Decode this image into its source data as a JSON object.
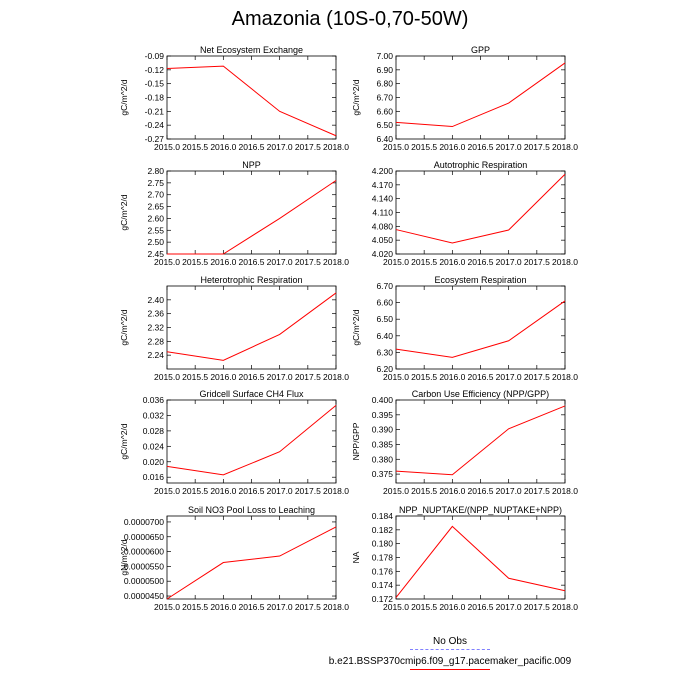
{
  "title": "Amazonia (10S-0,70-50W)",
  "legend": {
    "obs_label": "No Obs",
    "case_label": "b.e21.BSSP370cmip6.f09_g17.pacemaker_pacific.009",
    "obs_color": "#8080ff",
    "case_color": "#ff0000"
  },
  "chart_data": [
    {
      "type": "line",
      "title": "Net Ecosystem Exchange",
      "ylabel": "gC/m^2/d",
      "xlabel": "",
      "x": [
        2015,
        2016,
        2017,
        2018
      ],
      "xlim": [
        2015,
        2018
      ],
      "xticks": [
        "2015.0",
        "2015.5",
        "2016.0",
        "2016.5",
        "2017.0",
        "2017.5",
        "2018.0"
      ],
      "ylim": [
        -0.27,
        -0.09
      ],
      "yticks": [
        "-0.27",
        "-0.24",
        "-0.21",
        "-0.18",
        "-0.15",
        "-0.12",
        "-0.09"
      ],
      "series": [
        {
          "values": [
            -0.117,
            -0.112,
            -0.21,
            -0.263
          ],
          "color": "#ff0000"
        }
      ]
    },
    {
      "type": "line",
      "title": "GPP",
      "ylabel": "gC/m^2/d",
      "xlabel": "",
      "x": [
        2015,
        2016,
        2017,
        2018
      ],
      "xlim": [
        2015,
        2018
      ],
      "xticks": [
        "2015.0",
        "2015.5",
        "2016.0",
        "2016.5",
        "2017.0",
        "2017.5",
        "2018.0"
      ],
      "ylim": [
        6.4,
        7.0
      ],
      "yticks": [
        "6.40",
        "6.50",
        "6.60",
        "6.70",
        "6.80",
        "6.90",
        "7.00"
      ],
      "series": [
        {
          "values": [
            6.52,
            6.49,
            6.66,
            6.95
          ],
          "color": "#ff0000"
        }
      ]
    },
    {
      "type": "line",
      "title": "NPP",
      "ylabel": "gC/m^2/d",
      "xlabel": "",
      "x": [
        2015,
        2016,
        2017,
        2018
      ],
      "xlim": [
        2015,
        2018
      ],
      "xticks": [
        "2015.0",
        "2015.5",
        "2016.0",
        "2016.5",
        "2017.0",
        "2017.5",
        "2018.0"
      ],
      "ylim": [
        2.45,
        2.8
      ],
      "yticks": [
        "2.45",
        "2.50",
        "2.55",
        "2.60",
        "2.65",
        "2.70",
        "2.75",
        "2.80"
      ],
      "series": [
        {
          "values": [
            2.45,
            2.45,
            2.6,
            2.76
          ],
          "color": "#ff0000"
        }
      ]
    },
    {
      "type": "line",
      "title": "Autotrophic Respiration",
      "ylabel": "",
      "xlabel": "",
      "x": [
        2015,
        2016,
        2017,
        2018
      ],
      "xlim": [
        2015,
        2018
      ],
      "xticks": [
        "2015.0",
        "2015.5",
        "2016.0",
        "2016.5",
        "2017.0",
        "2017.5",
        "2018.0"
      ],
      "ylim": [
        4.02,
        4.2
      ],
      "yticks": [
        "4.020",
        "4.050",
        "4.080",
        "4.110",
        "4.140",
        "4.170",
        "4.200"
      ],
      "series": [
        {
          "values": [
            4.073,
            4.044,
            4.072,
            4.193
          ],
          "color": "#ff0000"
        }
      ]
    },
    {
      "type": "line",
      "title": "Heterotrophic Respiration",
      "ylabel": "gC/m^2/d",
      "xlabel": "",
      "x": [
        2015,
        2016,
        2017,
        2018
      ],
      "xlim": [
        2015,
        2018
      ],
      "xticks": [
        "2015.0",
        "2015.5",
        "2016.0",
        "2016.5",
        "2017.0",
        "2017.5",
        "2018.0"
      ],
      "ylim": [
        2.2,
        2.44
      ],
      "yticks": [
        "2.24",
        "2.28",
        "2.32",
        "2.36",
        "2.40"
      ],
      "series": [
        {
          "values": [
            2.25,
            2.225,
            2.3,
            2.42
          ],
          "color": "#ff0000"
        }
      ]
    },
    {
      "type": "line",
      "title": "Ecosystem Respiration",
      "ylabel": "gC/m^2/d",
      "xlabel": "",
      "x": [
        2015,
        2016,
        2017,
        2018
      ],
      "xlim": [
        2015,
        2018
      ],
      "xticks": [
        "2015.0",
        "2015.5",
        "2016.0",
        "2016.5",
        "2017.0",
        "2017.5",
        "2018.0"
      ],
      "ylim": [
        6.2,
        6.7
      ],
      "yticks": [
        "6.20",
        "6.30",
        "6.40",
        "6.50",
        "6.60",
        "6.70"
      ],
      "series": [
        {
          "values": [
            6.32,
            6.27,
            6.37,
            6.61
          ],
          "color": "#ff0000"
        }
      ]
    },
    {
      "type": "line",
      "title": "Gridcell Surface CH4 Flux",
      "ylabel": "gC/m^2/d",
      "xlabel": "",
      "x": [
        2015,
        2016,
        2017,
        2018
      ],
      "xlim": [
        2015,
        2018
      ],
      "xticks": [
        "2015.0",
        "2015.5",
        "2016.0",
        "2016.5",
        "2017.0",
        "2017.5",
        "2018.0"
      ],
      "ylim": [
        0.0145,
        0.036
      ],
      "yticks": [
        "0.016",
        "0.020",
        "0.024",
        "0.028",
        "0.032",
        "0.036"
      ],
      "series": [
        {
          "values": [
            0.0188,
            0.0166,
            0.0226,
            0.0346
          ],
          "color": "#ff0000"
        }
      ]
    },
    {
      "type": "line",
      "title": "Carbon Use Efficiency (NPP/GPP)",
      "ylabel": "NPP/GPP",
      "xlabel": "",
      "x": [
        2015,
        2016,
        2017,
        2018
      ],
      "xlim": [
        2015,
        2018
      ],
      "xticks": [
        "2015.0",
        "2015.5",
        "2016.0",
        "2016.5",
        "2017.0",
        "2017.5",
        "2018.0"
      ],
      "ylim": [
        0.372,
        0.4
      ],
      "yticks": [
        "0.375",
        "0.380",
        "0.385",
        "0.390",
        "0.395",
        "0.400"
      ],
      "series": [
        {
          "values": [
            0.376,
            0.3748,
            0.3903,
            0.398
          ],
          "color": "#ff0000"
        }
      ]
    },
    {
      "type": "line",
      "title": "Soil NO3 Pool Loss to Leaching",
      "ylabel": "gN/m^2/d",
      "xlabel": "",
      "x": [
        2015,
        2016,
        2017,
        2018
      ],
      "xlim": [
        2015,
        2018
      ],
      "xticks": [
        "2015.0",
        "2015.5",
        "2016.0",
        "2016.5",
        "2017.0",
        "2017.5",
        "2018.0"
      ],
      "ylim": [
        4.4e-05,
        7.2e-05
      ],
      "yticks": [
        "0.0000450",
        "0.0000500",
        "0.0000550",
        "0.0000600",
        "0.0000650",
        "0.0000700"
      ],
      "series": [
        {
          "values": [
            4.4e-05,
            5.63e-05,
            5.85e-05,
            6.83e-05
          ],
          "color": "#ff0000"
        }
      ]
    },
    {
      "type": "line",
      "title": "NPP_NUPTAKE/(NPP_NUPTAKE+NPP)",
      "ylabel": "NA",
      "xlabel": "",
      "x": [
        2015,
        2016,
        2017,
        2018
      ],
      "xlim": [
        2015,
        2018
      ],
      "xticks": [
        "2015.0",
        "2015.5",
        "2016.0",
        "2016.5",
        "2017.0",
        "2017.5",
        "2018.0"
      ],
      "ylim": [
        0.172,
        0.184
      ],
      "yticks": [
        "0.172",
        "0.174",
        "0.176",
        "0.178",
        "0.180",
        "0.182",
        "0.184"
      ],
      "series": [
        {
          "values": [
            0.1722,
            0.1825,
            0.175,
            0.1732
          ],
          "color": "#ff0000"
        }
      ]
    }
  ]
}
